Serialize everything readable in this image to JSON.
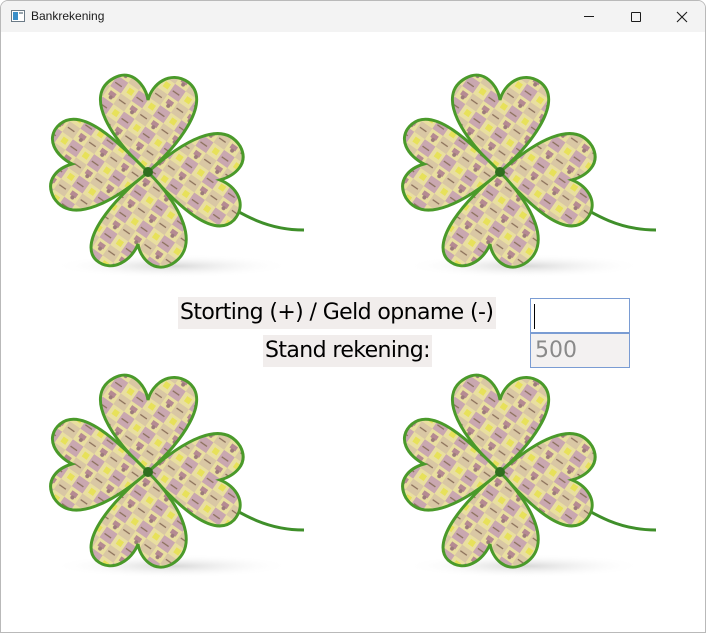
{
  "window": {
    "title": "Bankrekening"
  },
  "form": {
    "deposit_label": "Storting (+) / Geld opname (-)",
    "deposit_value": "",
    "balance_label": "Stand rekening:",
    "balance_value": "500"
  },
  "images": {
    "clover_alt": "four-leaf-clover-money-image"
  },
  "colors": {
    "label_background": "#f1edec",
    "input_border": "#7a9cd3",
    "clover_outline": "#4a9a2a"
  }
}
